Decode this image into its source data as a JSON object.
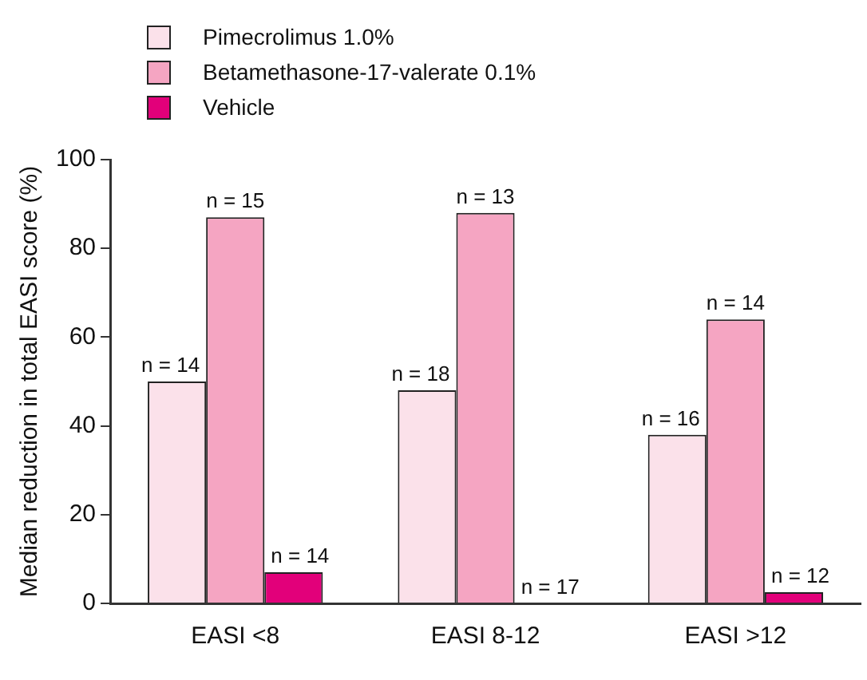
{
  "chart_data": {
    "type": "bar",
    "ylabel": "Median reduction in total EASI score (%)",
    "categories": [
      "EASI <8",
      "EASI 8-12",
      "EASI >12"
    ],
    "series": [
      {
        "name": "Pimecrolimus 1.0%",
        "color": "#fbe1ea",
        "values": [
          50,
          48,
          38
        ]
      },
      {
        "name": "Betamethasone-17-valerate 0.1%",
        "color": "#f5a5c2",
        "values": [
          87,
          88,
          64
        ]
      },
      {
        "name": "Vehicle",
        "color": "#e2007a",
        "values": [
          7,
          0,
          2.5
        ]
      }
    ],
    "annotations": [
      "n = 14",
      "n = 15",
      "n = 14",
      "n = 18",
      "n = 13",
      "n = 17",
      "n = 16",
      "n = 14",
      "n = 12"
    ],
    "ylim": [
      0,
      100
    ],
    "yticks": [
      0,
      20,
      40,
      60,
      80,
      100
    ],
    "grid": false,
    "legend": "top left"
  }
}
